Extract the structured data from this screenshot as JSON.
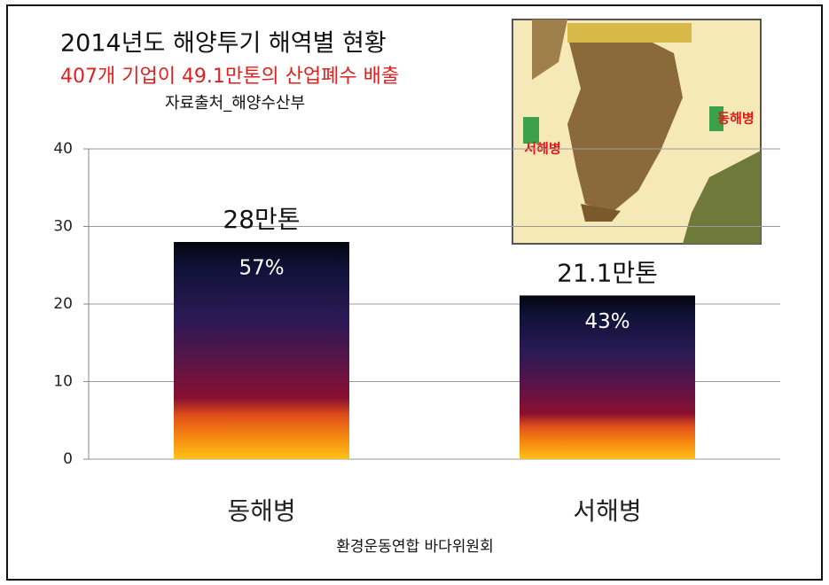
{
  "chart_data": {
    "type": "bar",
    "title": "2014년도 해양투기 해역별 현황",
    "subtitle": "407개 기업이 49.1만톤의 산업폐수 배출",
    "source": "자료출처_해양수산부",
    "x_label": "환경운동연합 바다위원회",
    "categories": [
      "동해병",
      "서해병"
    ],
    "values": [
      28,
      21.1
    ],
    "value_labels": [
      "28만톤",
      "21.1만톤"
    ],
    "shares": [
      57,
      43
    ],
    "share_labels": [
      "57%",
      "43%"
    ],
    "ylim": [
      0,
      40
    ],
    "yticks": [
      0,
      10,
      20,
      30,
      40
    ],
    "grid": true,
    "map_labels": [
      "서해병",
      "동해병"
    ]
  }
}
